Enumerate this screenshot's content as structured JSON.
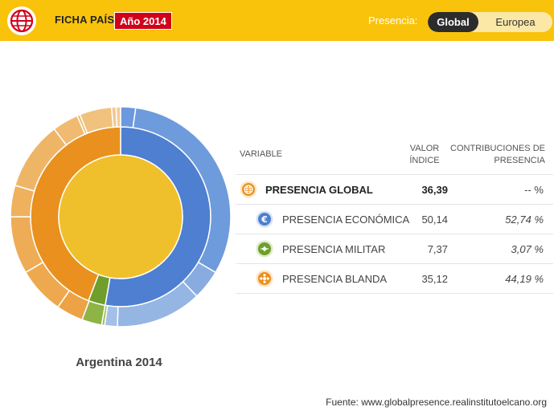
{
  "header": {
    "title": "FICHA PAÍS",
    "year_badge": "Año 2014",
    "presence_label": "Presencia:",
    "toggle": {
      "global": "Global",
      "europea": "Europea"
    }
  },
  "colors": {
    "header_bg": "#f9c30b",
    "badge_red": "#d0021b",
    "economic_blue": "#4e7fd0",
    "military_green": "#6f9e2c",
    "soft_orange": "#e9901f",
    "global_yellow": "#efc02c"
  },
  "chart_data": {
    "type": "sunburst",
    "title": "Argentina 2014",
    "center": {
      "name": "Presencia global",
      "value": 36.39,
      "color": "#efc02c"
    },
    "inner_ring": [
      {
        "name": "Presencia económica",
        "contribution": 52.74,
        "color": "#4e7fd0"
      },
      {
        "name": "Presencia militar",
        "contribution": 3.07,
        "color": "#6f9e2c"
      },
      {
        "name": "Presencia blanda",
        "contribution": 44.19,
        "color": "#e9901f"
      }
    ],
    "outer_ring": [
      {
        "parent": "Presencia económica",
        "value": 2.0,
        "color": "#6b98de"
      },
      {
        "parent": "Presencia económica",
        "value": 28.5,
        "color": "#6e9bdb"
      },
      {
        "parent": "Presencia económica",
        "value": 4.0,
        "color": "#88acdf"
      },
      {
        "parent": "Presencia económica",
        "value": 11.5,
        "color": "#95b5e3"
      },
      {
        "parent": "Presencia económica",
        "value": 1.7,
        "color": "#a4c0e8"
      },
      {
        "parent": "Presencia militar",
        "value": 0.4,
        "color": "#9fc25a"
      },
      {
        "parent": "Presencia militar",
        "value": 2.67,
        "color": "#8db445"
      },
      {
        "parent": "Presencia blanda",
        "value": 3.6,
        "color": "#eda245"
      },
      {
        "parent": "Presencia blanda",
        "value": 6.3,
        "color": "#eea94e"
      },
      {
        "parent": "Presencia blanda",
        "value": 7.7,
        "color": "#eeac56"
      },
      {
        "parent": "Presencia blanda",
        "value": 4.2,
        "color": "#efb15e"
      },
      {
        "parent": "Presencia blanda",
        "value": 9.2,
        "color": "#efb567"
      },
      {
        "parent": "Presencia blanda",
        "value": 3.5,
        "color": "#f0ba70"
      },
      {
        "parent": "Presencia blanda",
        "value": 0.4,
        "color": "#f0bd78"
      },
      {
        "parent": "Presencia blanda",
        "value": 4.3,
        "color": "#f0c27e"
      },
      {
        "parent": "Presencia blanda",
        "value": 0.59,
        "color": "#f2c78a"
      },
      {
        "parent": "Presencia blanda",
        "value": 0.6,
        "color": "#f3cd95"
      }
    ]
  },
  "table": {
    "headers": {
      "variable": "VARIABLE",
      "valor": "VALOR ÍNDICE",
      "contrib": "CONTRIBUCIONES DE PRESENCIA"
    },
    "rows": [
      {
        "label": "PRESENCIA GLOBAL",
        "value": "36,39",
        "contribution": "-- %",
        "icon": "globe-icon",
        "color": "#e9901f"
      },
      {
        "label": "PRESENCIA ECONÓMICA",
        "value": "50,14",
        "contribution": "52,74 %",
        "icon": "euro-icon",
        "color": "#4e7fd0"
      },
      {
        "label": "PRESENCIA MILITAR",
        "value": "7,37",
        "contribution": "3,07 %",
        "icon": "military-icon",
        "color": "#6f9e2c"
      },
      {
        "label": "PRESENCIA BLANDA",
        "value": "35,12",
        "contribution": "44,19 %",
        "icon": "soft-power-icon",
        "color": "#e9901f"
      }
    ]
  },
  "footer": {
    "source": "Fuente: www.globalpresence.realinstitutoelcano.org"
  }
}
